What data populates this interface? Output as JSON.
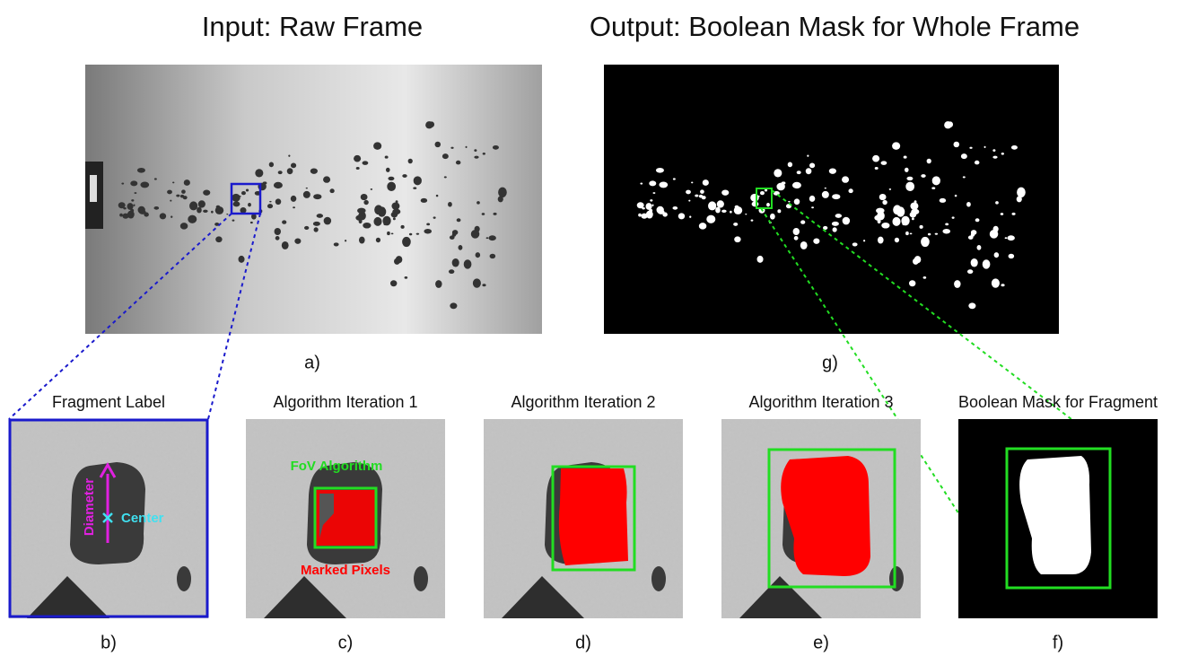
{
  "top_panels": [
    {
      "title": "Input: Raw Frame",
      "label": "a)"
    },
    {
      "title": "Output: Boolean Mask for Whole Frame",
      "label": "g)"
    }
  ],
  "bottom_panels": [
    {
      "title": "Fragment Label",
      "label": "b)",
      "annotations": [
        "Diameter",
        "Center"
      ]
    },
    {
      "title": "Algorithm Iteration 1",
      "label": "c)",
      "annotations": [
        "FoV Algorithm",
        "Marked Pixels"
      ]
    },
    {
      "title": "Algorithm Iteration 2",
      "label": "d)"
    },
    {
      "title": "Algorithm Iteration 3",
      "label": "e)"
    },
    {
      "title": "Boolean Mask for Fragment",
      "label": "f)"
    }
  ]
}
